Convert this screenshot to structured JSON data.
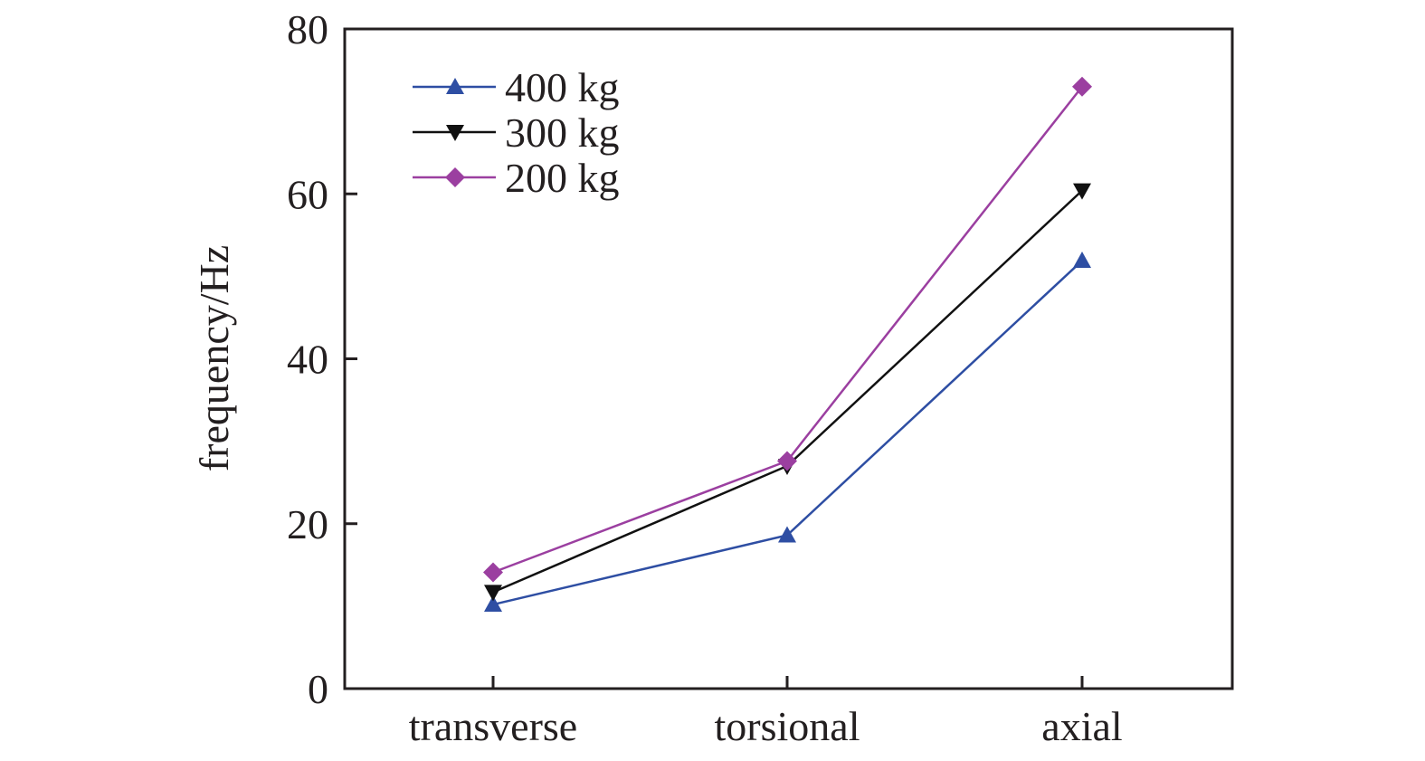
{
  "chart_data": {
    "type": "line",
    "title": "",
    "xlabel": "",
    "ylabel": "frequency/Hz",
    "categories": [
      "transverse",
      "torsional",
      "axial"
    ],
    "ylim": [
      0,
      80
    ],
    "yticks": [
      0,
      20,
      40,
      60,
      80
    ],
    "grid": false,
    "legend_position": "top-left",
    "series": [
      {
        "name": "400 kg",
        "values": [
          10.2,
          18.6,
          51.9
        ],
        "color": "#2e4ea3",
        "marker": "triangle-up"
      },
      {
        "name": "300 kg",
        "values": [
          11.7,
          27.0,
          60.4
        ],
        "color": "#111111",
        "marker": "triangle-down"
      },
      {
        "name": "200 kg",
        "values": [
          14.1,
          27.6,
          73.0
        ],
        "color": "#9b3fa0",
        "marker": "diamond"
      }
    ]
  }
}
